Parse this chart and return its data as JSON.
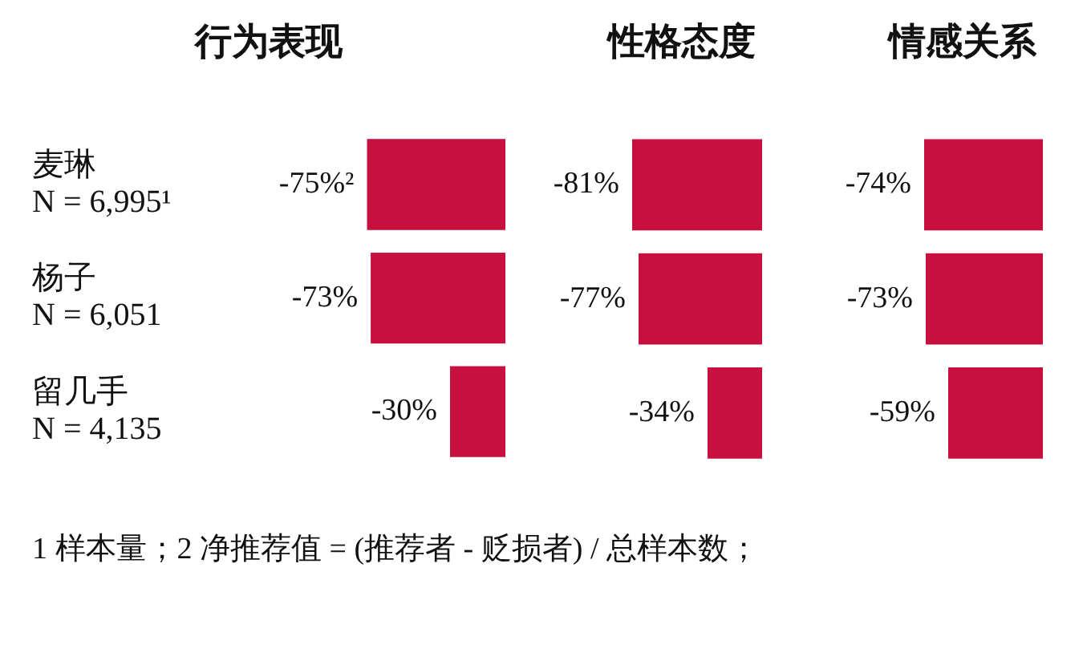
{
  "chart_data": [
    {
      "type": "bar",
      "orientation": "horizontal",
      "title": "行为表现",
      "categories": [
        "麦琳\nN = 6,995¹",
        "杨子\nN = 6,051",
        "留几手\nN = 4,135"
      ],
      "values": [
        -75,
        -73,
        -30
      ],
      "value_labels": [
        "-75%²",
        "-73%",
        "-30%"
      ],
      "color": "#c8103e",
      "tick_labels": "y",
      "annotations": [
        "1 样本量；2 净推荐值 = (推荐者 - 贬损者) / 总样本数；"
      ]
    },
    {
      "type": "bar",
      "orientation": "horizontal",
      "title": "性格态度",
      "categories": [
        null,
        null,
        null
      ],
      "values": [
        -81,
        -77,
        -34
      ],
      "value_labels": [
        "-81%",
        "-77%",
        "-34%"
      ],
      "color": "#c8103e",
      "tick_labels": false
    },
    {
      "type": "bar",
      "orientation": "horizontal",
      "title": "情感关系",
      "categories": [
        null,
        null,
        null
      ],
      "values": [
        -74,
        -73,
        -59
      ],
      "value_labels": [
        "-74%",
        "-73%",
        "-59%"
      ],
      "color": "#c8103e",
      "tick_labels": false
    }
  ]
}
